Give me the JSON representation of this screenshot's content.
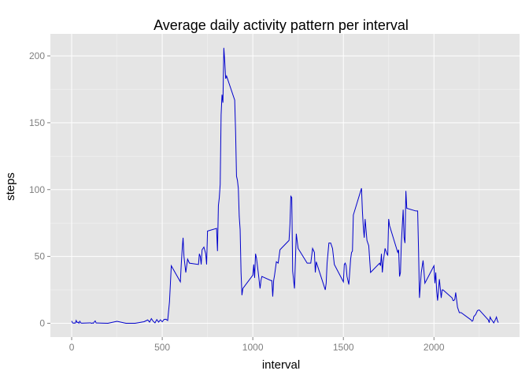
{
  "chart_data": {
    "type": "line",
    "title": "Average daily activity pattern per interval",
    "xlabel": "interval",
    "ylabel": "steps",
    "xlim": [
      -117.5,
      2472.5
    ],
    "ylim": [
      -10.3,
      216.5
    ],
    "x_ticks": [
      0,
      500,
      1000,
      1500,
      2000
    ],
    "y_ticks": [
      0,
      50,
      100,
      150,
      200
    ],
    "grid": true,
    "colors": {
      "panel_background": "#e5e5e5",
      "grid_major": "#ffffff",
      "grid_minor": "#f2f2f2",
      "line": "#0000cc",
      "tick_text": "#7f7f7f"
    },
    "series": [
      {
        "x": [
          0,
          5,
          10,
          15,
          20,
          25,
          30,
          35,
          40,
          45,
          50,
          55,
          100,
          105,
          110,
          115,
          120,
          125,
          130,
          135,
          140,
          200,
          250,
          300,
          350,
          400,
          420,
          430,
          440,
          450,
          460,
          470,
          480,
          490,
          500,
          510,
          520,
          530,
          540,
          550,
          600,
          605,
          610,
          615,
          620,
          630,
          640,
          650,
          700,
          705,
          710,
          715,
          720,
          730,
          740,
          745,
          750,
          800,
          805,
          810,
          815,
          820,
          825,
          830,
          835,
          840,
          845,
          850,
          855,
          900,
          905,
          910,
          915,
          920,
          925,
          930,
          935,
          940,
          945,
          1000,
          1005,
          1010,
          1015,
          1020,
          1030,
          1040,
          1045,
          1050,
          1100,
          1105,
          1110,
          1115,
          1120,
          1130,
          1140,
          1150,
          1200,
          1205,
          1210,
          1215,
          1220,
          1230,
          1240,
          1250,
          1300,
          1305,
          1310,
          1320,
          1330,
          1340,
          1345,
          1350,
          1400,
          1405,
          1410,
          1420,
          1430,
          1440,
          1450,
          1500,
          1505,
          1510,
          1515,
          1520,
          1530,
          1540,
          1545,
          1550,
          1555,
          1600,
          1605,
          1610,
          1615,
          1620,
          1630,
          1640,
          1650,
          1700,
          1705,
          1710,
          1715,
          1720,
          1730,
          1740,
          1745,
          1750,
          1755,
          1800,
          1805,
          1810,
          1815,
          1820,
          1830,
          1835,
          1840,
          1845,
          1850,
          1900,
          1905,
          1910,
          1915,
          1920,
          1930,
          1940,
          1950,
          2000,
          2005,
          2010,
          2015,
          2020,
          2030,
          2040,
          2045,
          2050,
          2100,
          2105,
          2110,
          2115,
          2120,
          2130,
          2140,
          2150,
          2200,
          2205,
          2210,
          2215,
          2220,
          2230,
          2240,
          2250,
          2300,
          2305,
          2310,
          2315,
          2320,
          2330,
          2340,
          2345,
          2350,
          2355
        ],
        "y": [
          1.7,
          0.3,
          0.1,
          0.2,
          0.1,
          2.1,
          0.5,
          0.9,
          0,
          1.5,
          0.3,
          0.1,
          0.3,
          0.3,
          0,
          0.3,
          0,
          1.1,
          1.8,
          0.2,
          0.2,
          0,
          1.5,
          0,
          0,
          1.2,
          2.5,
          0.9,
          3.5,
          1.5,
          0.3,
          2.8,
          0.9,
          2.6,
          1.1,
          2.9,
          3,
          2.1,
          16,
          43,
          31,
          44,
          55,
          64,
          50,
          38,
          48,
          45,
          44,
          52,
          50,
          44,
          55,
          57,
          52,
          44,
          69,
          71,
          54,
          88,
          94,
          104,
          156,
          171,
          165,
          206,
          196,
          183,
          185,
          167,
          143,
          110,
          107,
          101,
          80,
          70,
          38,
          21,
          26,
          36,
          44,
          34,
          52,
          49,
          38,
          26,
          32,
          35,
          32,
          32,
          20,
          32,
          36,
          46,
          45,
          55,
          62,
          74,
          95,
          94,
          39,
          26,
          67,
          56,
          45,
          45,
          45,
          45,
          56,
          53,
          38,
          46,
          25,
          30,
          45,
          60,
          60,
          56,
          44,
          31,
          44,
          45,
          43,
          35,
          29,
          48,
          53,
          54,
          81,
          101,
          84,
          72,
          64,
          78,
          62,
          58,
          38,
          45,
          43,
          52,
          38,
          46,
          56,
          52,
          51,
          78,
          73,
          53,
          55,
          35,
          38,
          60,
          85,
          64,
          60,
          99,
          86,
          84,
          84,
          84,
          54,
          19,
          38,
          47,
          30,
          43,
          30,
          38,
          24,
          17,
          33,
          19,
          25,
          25,
          19,
          17,
          17,
          18,
          23,
          12,
          8,
          8,
          3,
          2.5,
          1.5,
          2,
          5,
          6.5,
          9.5,
          10,
          2.5,
          0.5,
          4.7,
          3.2,
          2.3,
          0.3,
          3,
          4.7,
          2.1,
          0.5
        ]
      }
    ]
  }
}
